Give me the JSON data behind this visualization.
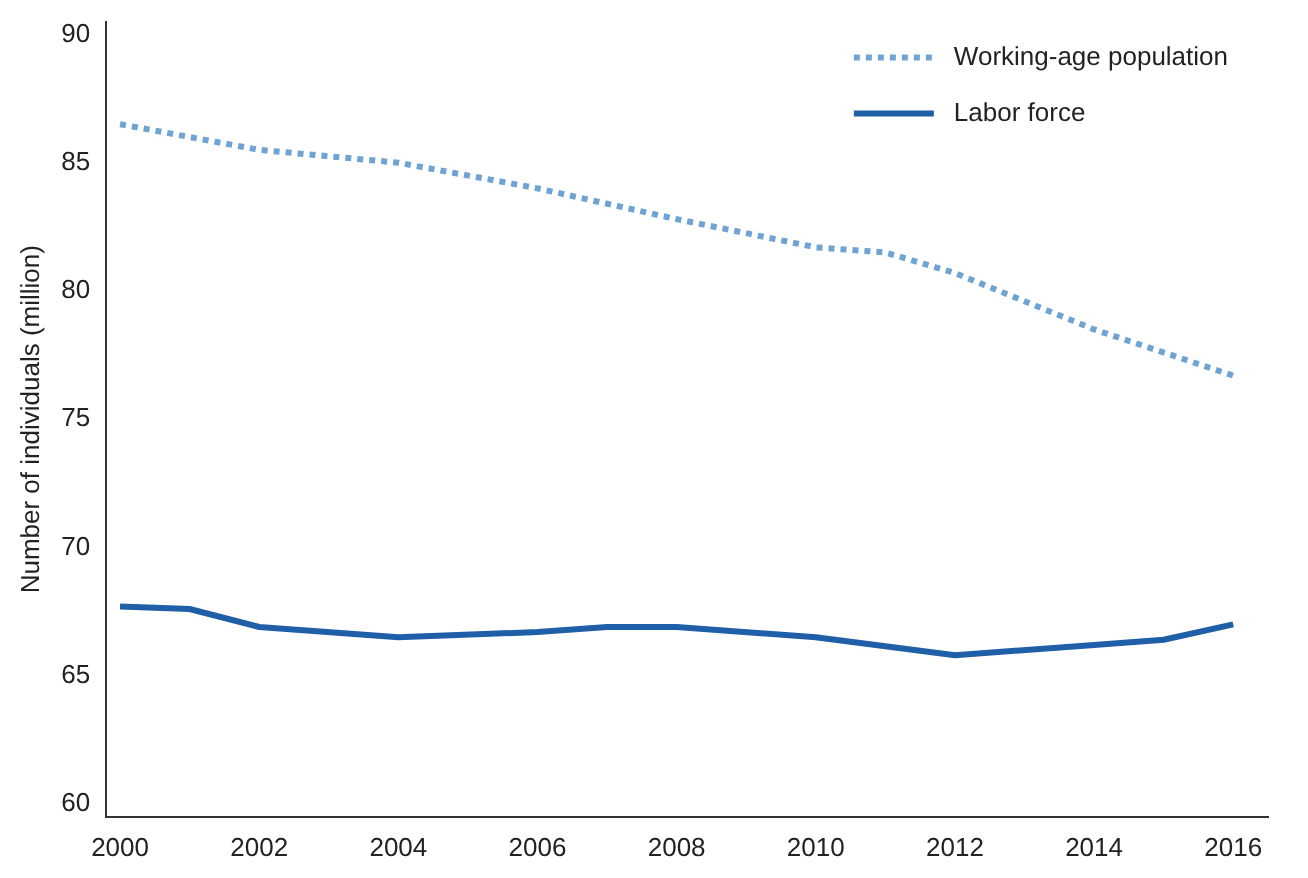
{
  "chart_data": {
    "type": "line",
    "ylabel": "Number of individuals (million)",
    "xlim": [
      1999.8,
      2016.5
    ],
    "xticks": [
      2000,
      2002,
      2004,
      2006,
      2008,
      2010,
      2012,
      2014,
      2016
    ],
    "ylim": [
      59.5,
      90.5
    ],
    "yticks": [
      60,
      65,
      70,
      75,
      80,
      85,
      90
    ],
    "grid": false,
    "legend": "top right",
    "marker": "none",
    "series": [
      {
        "name": "Working-age population",
        "color": "#6fa3d4",
        "line_style": "dotted",
        "x": [
          2000,
          2002,
          2004,
          2006,
          2008,
          2010,
          2011,
          2012,
          2014,
          2016
        ],
        "values": [
          86.5,
          85.5,
          85.0,
          84.0,
          82.8,
          81.7,
          81.5,
          80.7,
          78.5,
          76.7
        ]
      },
      {
        "name": "Labor force",
        "color": "#1f5fa8",
        "line_style": "solid",
        "x": [
          2000,
          2001,
          2002,
          2004,
          2006,
          2007,
          2008,
          2010,
          2012,
          2014,
          2015,
          2016
        ],
        "values": [
          67.7,
          67.6,
          66.9,
          66.5,
          66.7,
          66.9,
          66.9,
          66.5,
          65.8,
          66.2,
          66.4,
          67.0
        ]
      }
    ]
  }
}
